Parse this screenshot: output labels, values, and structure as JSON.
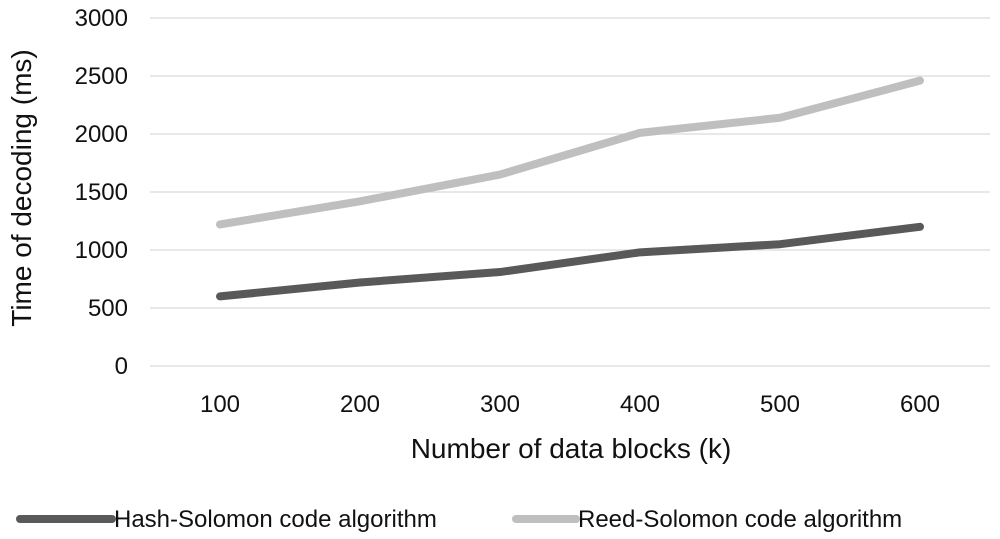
{
  "chart_data": {
    "type": "line",
    "categories": [
      "100",
      "200",
      "300",
      "400",
      "500",
      "600"
    ],
    "series": [
      {
        "name": "Hash-Solomon code algorithm",
        "values": [
          600,
          720,
          810,
          980,
          1050,
          1200
        ],
        "color": "#595959"
      },
      {
        "name": "Reed-Solomon code algorithm",
        "values": [
          1220,
          1420,
          1650,
          2010,
          2140,
          2460
        ],
        "color": "#bfbfbf"
      }
    ],
    "title": "",
    "xlabel": "Number of data blocks (k)",
    "ylabel": "Time of decoding (ms)",
    "ylim": [
      0,
      3000
    ],
    "yticks": [
      "0",
      "500",
      "1000",
      "1500",
      "2000",
      "2500",
      "3000"
    ],
    "grid": "horizontal",
    "legend_position": "bottom"
  }
}
